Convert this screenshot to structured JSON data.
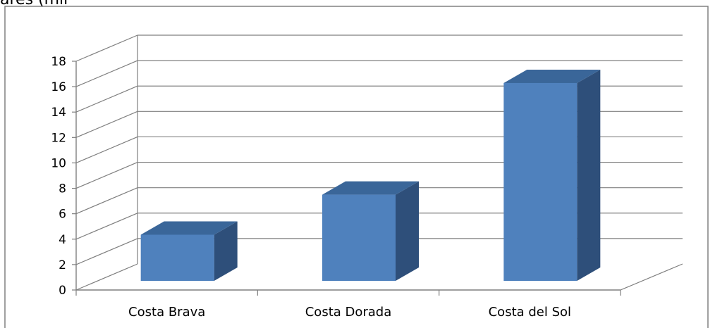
{
  "chart_data": {
    "type": "bar",
    "title_fragment": "ares (mil",
    "categories": [
      "Costa Brava",
      "Costa Dorada",
      "Costa del Sol"
    ],
    "values": [
      3.8,
      7.1,
      16.3
    ],
    "ylim": [
      0,
      18
    ],
    "yticks": [
      "0",
      "2",
      "4",
      "6",
      "8",
      "10",
      "12",
      "14",
      "16",
      "18"
    ],
    "grid": true,
    "three_d": true,
    "colors": {
      "bar_front": "#4f81bd",
      "bar_side": "#2e4f7a",
      "bar_top": "#3a6699",
      "grid": "#7f7f7f",
      "border": "#808080"
    }
  }
}
